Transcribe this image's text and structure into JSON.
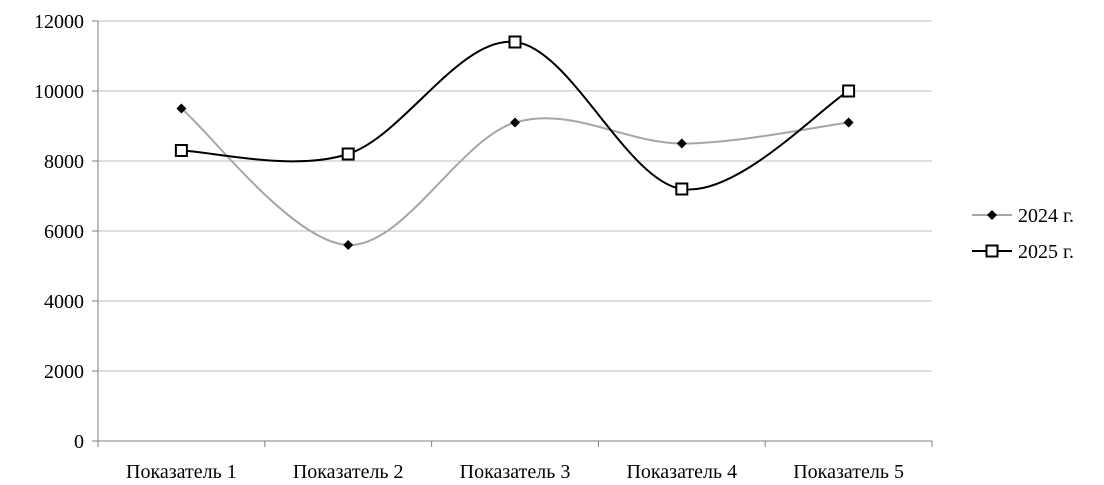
{
  "chart_data": {
    "type": "line",
    "smooth": true,
    "title": "",
    "xlabel": "",
    "ylabel": "",
    "categories": [
      "Показатель 1",
      "Показатель 2",
      "Показатель 3",
      "Показатель 4",
      "Показатель 5"
    ],
    "ylim": [
      0,
      12000
    ],
    "yticks": [
      "0",
      "2000",
      "4000",
      "6000",
      "8000",
      "10000",
      "12000"
    ],
    "grid": "horizontal",
    "legend_position": "right",
    "series": [
      {
        "name": "2024 г.",
        "values": [
          9500,
          5600,
          9100,
          8500,
          9100
        ],
        "color": "#a6a6a6",
        "marker": "diamond",
        "marker_color": "#000000"
      },
      {
        "name": "2025 г.",
        "values": [
          8300,
          8200,
          11400,
          7200,
          10000
        ],
        "color": "#000000",
        "marker": "square",
        "marker_color": "#000000"
      }
    ]
  }
}
